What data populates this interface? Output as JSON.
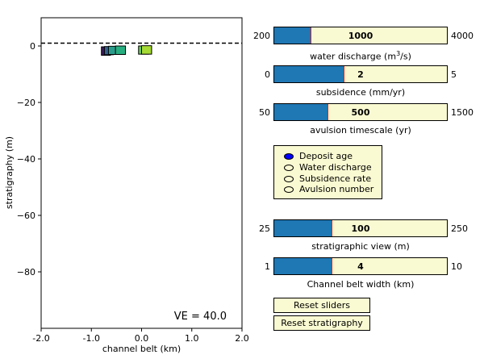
{
  "plot": {
    "ylabel": "stratigraphy (m)",
    "xlabel": "channel belt (km)",
    "ve_text": "VE = 40.0",
    "xlim": [
      -2.0,
      2.0
    ],
    "ylim": [
      -100,
      10
    ],
    "x_ticks": [
      "-2.0",
      "-1.0",
      "0.0",
      "1.0",
      "2.0"
    ],
    "y_ticks": [
      "0",
      "−20",
      "−40",
      "−60",
      "−80"
    ],
    "dashed_line_level": 1,
    "deposits": [
      {
        "x0": -0.8,
        "x1": -0.62,
        "y_top": -0.3,
        "y_bottom": -3.3,
        "color": "#3b1a5a"
      },
      {
        "x0": -0.74,
        "x1": -0.56,
        "y_top": -0.2,
        "y_bottom": -3.1,
        "color": "#34618d"
      },
      {
        "x0": -0.66,
        "x1": -0.46,
        "y_top": -0.1,
        "y_bottom": -3.0,
        "color": "#2a9c8b"
      },
      {
        "x0": -0.52,
        "x1": -0.32,
        "y_top": 0.0,
        "y_bottom": -3.0,
        "color": "#27ae80"
      },
      {
        "x0": -0.06,
        "x1": 0.14,
        "y_top": 0.0,
        "y_bottom": -2.9,
        "color": "#6ccd5a"
      },
      {
        "x0": 0.0,
        "x1": 0.2,
        "y_top": 0.1,
        "y_bottom": -2.9,
        "color": "#a6db35"
      }
    ]
  },
  "sliders": [
    {
      "name": "water-discharge",
      "min_label": "200",
      "max_label": "4000",
      "value_label": "1000",
      "fraction": 0.2105,
      "label_pre": "water discharge (m",
      "label_sup": "3",
      "label_post": "/s)"
    },
    {
      "name": "subsidence",
      "min_label": "0",
      "max_label": "5",
      "value_label": "2",
      "fraction": 0.4,
      "label_pre": "subsidence (mm/yr)",
      "label_sup": "",
      "label_post": ""
    },
    {
      "name": "avulsion-timescale",
      "min_label": "50",
      "max_label": "1500",
      "value_label": "500",
      "fraction": 0.3103,
      "label_pre": "avulsion timescale (yr)",
      "label_sup": "",
      "label_post": ""
    },
    {
      "name": "stratigraphic-view",
      "min_label": "25",
      "max_label": "250",
      "value_label": "100",
      "fraction": 0.3333,
      "label_pre": "stratigraphic view (m)",
      "label_sup": "",
      "label_post": ""
    },
    {
      "name": "channel-belt-width",
      "min_label": "1",
      "max_label": "10",
      "value_label": "4",
      "fraction": 0.3333,
      "label_pre": "Channel belt width (km)",
      "label_sup": "",
      "label_post": ""
    }
  ],
  "radio": {
    "selected": 0,
    "options": [
      "Deposit age",
      "Water discharge",
      "Subsidence rate",
      "Avulsion number"
    ]
  },
  "buttons": {
    "reset_sliders": "Reset sliders",
    "reset_stratigraphy": "Reset stratigraphy"
  }
}
